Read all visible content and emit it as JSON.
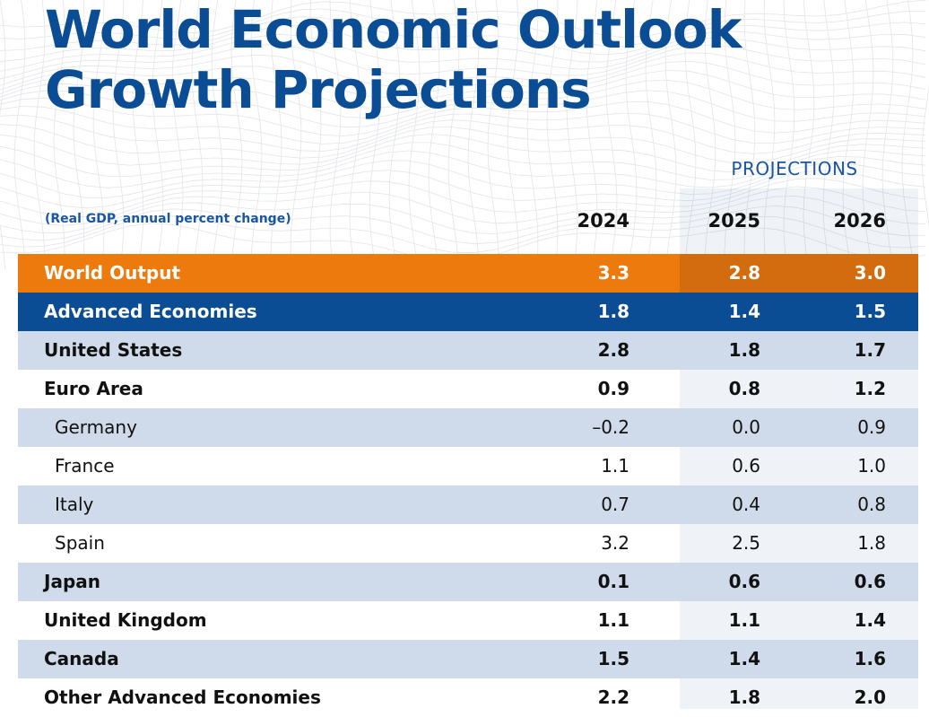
{
  "title_line1": "World Economic Outlook",
  "title_line2": "Growth Projections",
  "projections_label": "PROJECTIONS",
  "subheading": "(Real GDP, annual percent change)",
  "years": [
    "2024",
    "2025",
    "2026"
  ],
  "colors": {
    "title": "#0a4d95",
    "world_output_bar": "#ec7a0d",
    "advanced_economies_bar": "#0a4d95",
    "alternate_row": "#cfdbea"
  },
  "chart_data": {
    "type": "table",
    "title": "World Economic Outlook Growth Projections",
    "subtitle": "(Real GDP, annual percent change)",
    "columns": [
      "2024",
      "2025",
      "2026"
    ],
    "projection_columns": [
      "2025",
      "2026"
    ],
    "rows": [
      {
        "name": "World Output",
        "level": "headline",
        "values": [
          "3.3",
          "2.8",
          "3.0"
        ]
      },
      {
        "name": "Advanced Economies",
        "level": "headline",
        "values": [
          "1.8",
          "1.4",
          "1.5"
        ]
      },
      {
        "name": "United States",
        "level": "country",
        "values": [
          "2.8",
          "1.8",
          "1.7"
        ]
      },
      {
        "name": "Euro Area",
        "level": "country",
        "values": [
          "0.9",
          "0.8",
          "1.2"
        ]
      },
      {
        "name": "Germany",
        "level": "sub",
        "values": [
          "–0.2",
          "0.0",
          "0.9"
        ]
      },
      {
        "name": "France",
        "level": "sub",
        "values": [
          "1.1",
          "0.6",
          "1.0"
        ]
      },
      {
        "name": "Italy",
        "level": "sub",
        "values": [
          "0.7",
          "0.4",
          "0.8"
        ]
      },
      {
        "name": "Spain",
        "level": "sub",
        "values": [
          "3.2",
          "2.5",
          "1.8"
        ]
      },
      {
        "name": "Japan",
        "level": "country",
        "values": [
          "0.1",
          "0.6",
          "0.6"
        ]
      },
      {
        "name": "United Kingdom",
        "level": "country",
        "values": [
          "1.1",
          "1.1",
          "1.4"
        ]
      },
      {
        "name": "Canada",
        "level": "country",
        "values": [
          "1.5",
          "1.4",
          "1.6"
        ]
      },
      {
        "name": "Other Advanced Economies",
        "level": "country",
        "values": [
          "2.2",
          "1.8",
          "2.0"
        ]
      }
    ]
  }
}
